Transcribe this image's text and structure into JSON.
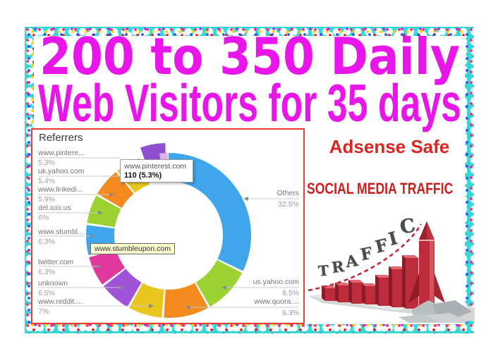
{
  "banner": {
    "headline_line1": "200 to 350 Daily",
    "headline_line2": "Web Visitors for 35 days",
    "adsense_safe": "Adsense Safe",
    "social_media_traffic": "SOCIAL MEDIA TRAFFIC",
    "colors": {
      "headline_magenta": "#e816e8",
      "adsense_red": "#dc2420",
      "social_red": "#cc1f1f",
      "border_teal": "#38d7d7",
      "panel_border_red": "#ef3b2d"
    }
  },
  "chart_data": {
    "type": "donut",
    "title": "Referrers",
    "legend_position": "both-sides",
    "segments": [
      {
        "label": "Others",
        "value": 32.5,
        "display": "32.5%",
        "color": "#3fa6ec"
      },
      {
        "label": "us.yahoo.com",
        "value": 9.5,
        "display": "9.5%",
        "color": "#9cd333"
      },
      {
        "label": "www.quora....",
        "value": 9.3,
        "display": "9.3%",
        "color": "#f28a1e"
      },
      {
        "label": "www.reddit....",
        "value": 7,
        "display": "7%",
        "color": "#e9c71f"
      },
      {
        "label": "unknown",
        "value": 6.5,
        "display": "6.5%",
        "color": "#a153d8"
      },
      {
        "label": "twitter.com",
        "value": 6.3,
        "display": "6.3%",
        "color": "#e0389c"
      },
      {
        "label": "www.stumbl...",
        "value": 6.3,
        "display": "6.3%",
        "color": "#3fa6ec"
      },
      {
        "label": "del.icio.us",
        "value": 6,
        "display": "6%",
        "color": "#9cd333"
      },
      {
        "label": "www.linkedi...",
        "value": 5.9,
        "display": "5.9%",
        "color": "#f28a1e"
      },
      {
        "label": "uk.yahoo.com",
        "value": 5.4,
        "display": "5.4%",
        "color": "#e9c71f"
      },
      {
        "label": "www.pintere...",
        "value": 5.3,
        "display": "5.3%",
        "color": "#8f4fd1",
        "exploded": true,
        "highlight_color": "#d9b3ea"
      }
    ],
    "legend_left_order": [
      10,
      9,
      8,
      7,
      6,
      5,
      4,
      3
    ],
    "legend_right_order": [
      0,
      1,
      2
    ],
    "tooltips": [
      {
        "line1": "www.pinterest.com",
        "line2": "110 (5.3%)",
        "style": "white"
      },
      {
        "line1": "www.stumbleupon.com",
        "line2": "",
        "style": "yellow"
      }
    ]
  },
  "traffic_graphic": {
    "letters": [
      "T",
      "R",
      "A",
      "F",
      "F",
      "I",
      "C"
    ],
    "bar_values": [
      18,
      24,
      30,
      26,
      40,
      54,
      72
    ],
    "bar_color": "#be2b3a",
    "bar_top_color": "#e16a72",
    "bar_side_color": "#8c1b29",
    "rocket_color": "#b5293a",
    "curve_color": "#c22a38",
    "rock_color": "#b9bec0"
  }
}
